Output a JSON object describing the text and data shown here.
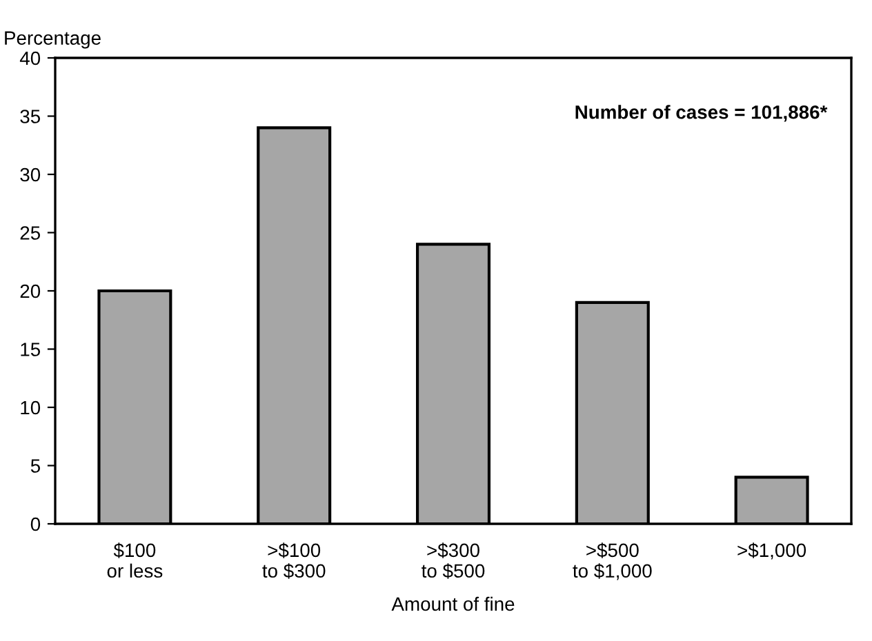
{
  "chart_data": {
    "type": "bar",
    "ylabel": "Percentage",
    "xlabel": "Amount of fine",
    "categories": [
      "$100\nor less",
      ">$100\nto $300",
      ">$300\nto $500",
      ">$500\nto $1,000",
      ">$1,000"
    ],
    "values": [
      20,
      34,
      24,
      19,
      4
    ],
    "color": "#a6a6a6",
    "ylim": [
      0,
      40
    ],
    "yticks": [
      0,
      5,
      10,
      15,
      20,
      25,
      30,
      35,
      40
    ],
    "annotations": [
      "Number of cases = 101,886*"
    ],
    "grid": false
  }
}
